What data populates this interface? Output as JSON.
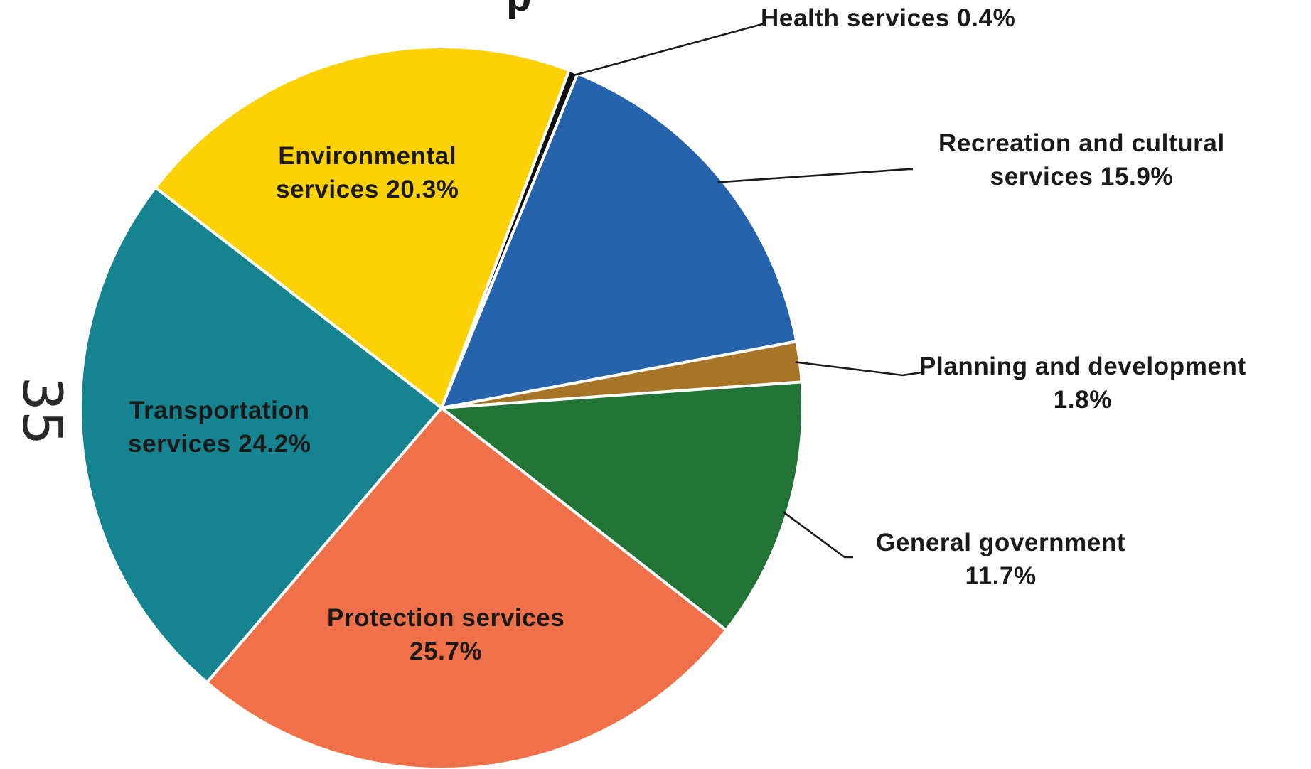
{
  "chart_data": {
    "type": "pie",
    "title": "",
    "title_visible_fragment": "p",
    "categories": [
      "Health services",
      "Recreation and cultural services",
      "Planning and development",
      "General government",
      "Protection services",
      "Transportation services",
      "Environmental services"
    ],
    "values": [
      0.4,
      15.9,
      1.8,
      11.7,
      25.7,
      24.2,
      20.3
    ],
    "labels": [
      {
        "line1": "Health services 0.4%",
        "line2": ""
      },
      {
        "line1": "Recreation and cultural",
        "line2": "services 15.9%"
      },
      {
        "line1": "Planning and development",
        "line2": "1.8%"
      },
      {
        "line1": "General government",
        "line2": "11.7%"
      },
      {
        "line1": "Protection services",
        "line2": "25.7%"
      },
      {
        "line1": "Transportation",
        "line2": "services 24.2%"
      },
      {
        "line1": "Environmental",
        "line2": "services 20.3%"
      }
    ],
    "colors": [
      "#111111",
      "#2563ac",
      "#a87426",
      "#227436",
      "#ef7049",
      "#168391",
      "#fcd105"
    ],
    "legend": "none",
    "units": "%"
  },
  "margin_note": "35"
}
